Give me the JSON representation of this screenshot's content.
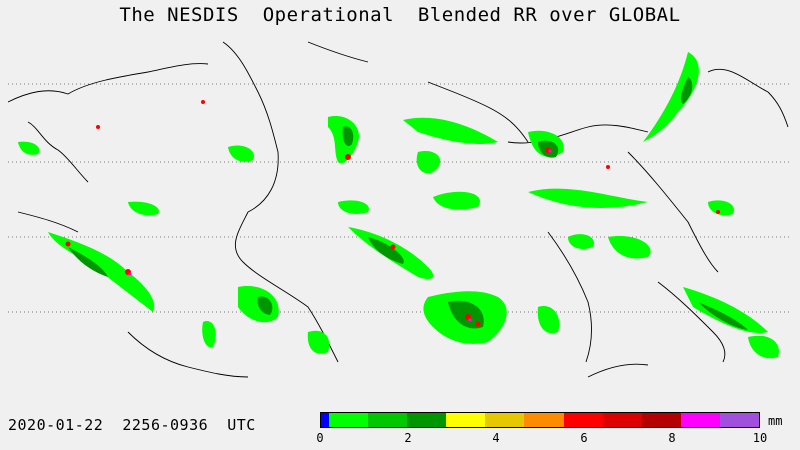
{
  "title": "The NESDIS  Operational  Blended RR over GLOBAL",
  "timestamp": "2020-01-22  2256-0936  UTC",
  "colorbar": {
    "unit": "mm",
    "colors": [
      "#0000ff",
      "#00ff00",
      "#00c800",
      "#009600",
      "#ffff00",
      "#e6c800",
      "#ff8c00",
      "#ff0000",
      "#dc0000",
      "#b40000",
      "#ff00ff",
      "#a050dc"
    ],
    "ticks": [
      "0",
      "2",
      "4",
      "6",
      "8",
      "10"
    ]
  },
  "legend_colors": {
    "coast": "#000000",
    "gridline": "#555555",
    "precip_light": "#00ff00",
    "precip_medium": "#009600",
    "precip_heavy": "#ff0000",
    "precip_extreme": "#ff00ff",
    "background": "#f0f0f0"
  }
}
